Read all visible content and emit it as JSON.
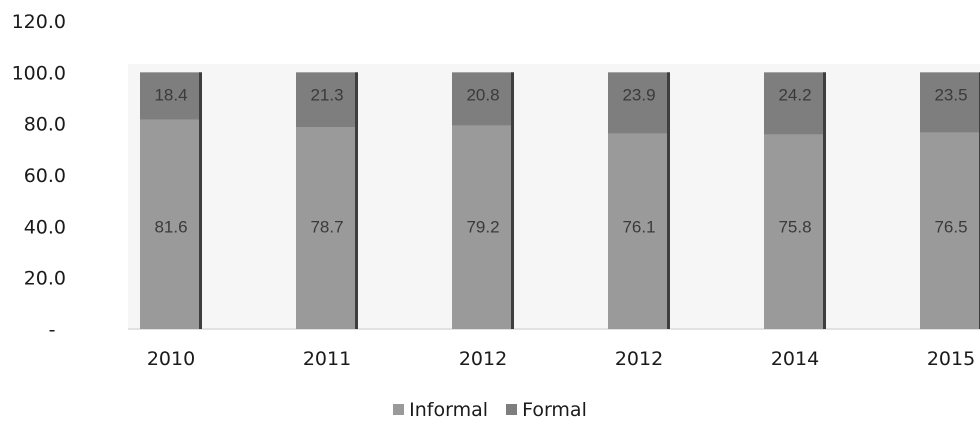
{
  "chart_data": {
    "type": "bar",
    "stacked": true,
    "categories": [
      "2010",
      "2011",
      "2012",
      "2012",
      "2014",
      "2015"
    ],
    "series": [
      {
        "name": "Informal",
        "values": [
          81.6,
          78.7,
          79.2,
          76.1,
          75.8,
          76.5
        ],
        "color": "#9a9a9a"
      },
      {
        "name": "Formal",
        "values": [
          18.4,
          21.3,
          20.8,
          23.9,
          24.2,
          23.5
        ],
        "color": "#7e7e7e"
      }
    ],
    "yticks": [
      "-",
      "20.0",
      "40.0",
      "60.0",
      "80.0",
      "100.0",
      "120.0"
    ],
    "ylim": [
      0,
      120
    ],
    "grid": false,
    "legend_position": "bottom"
  }
}
